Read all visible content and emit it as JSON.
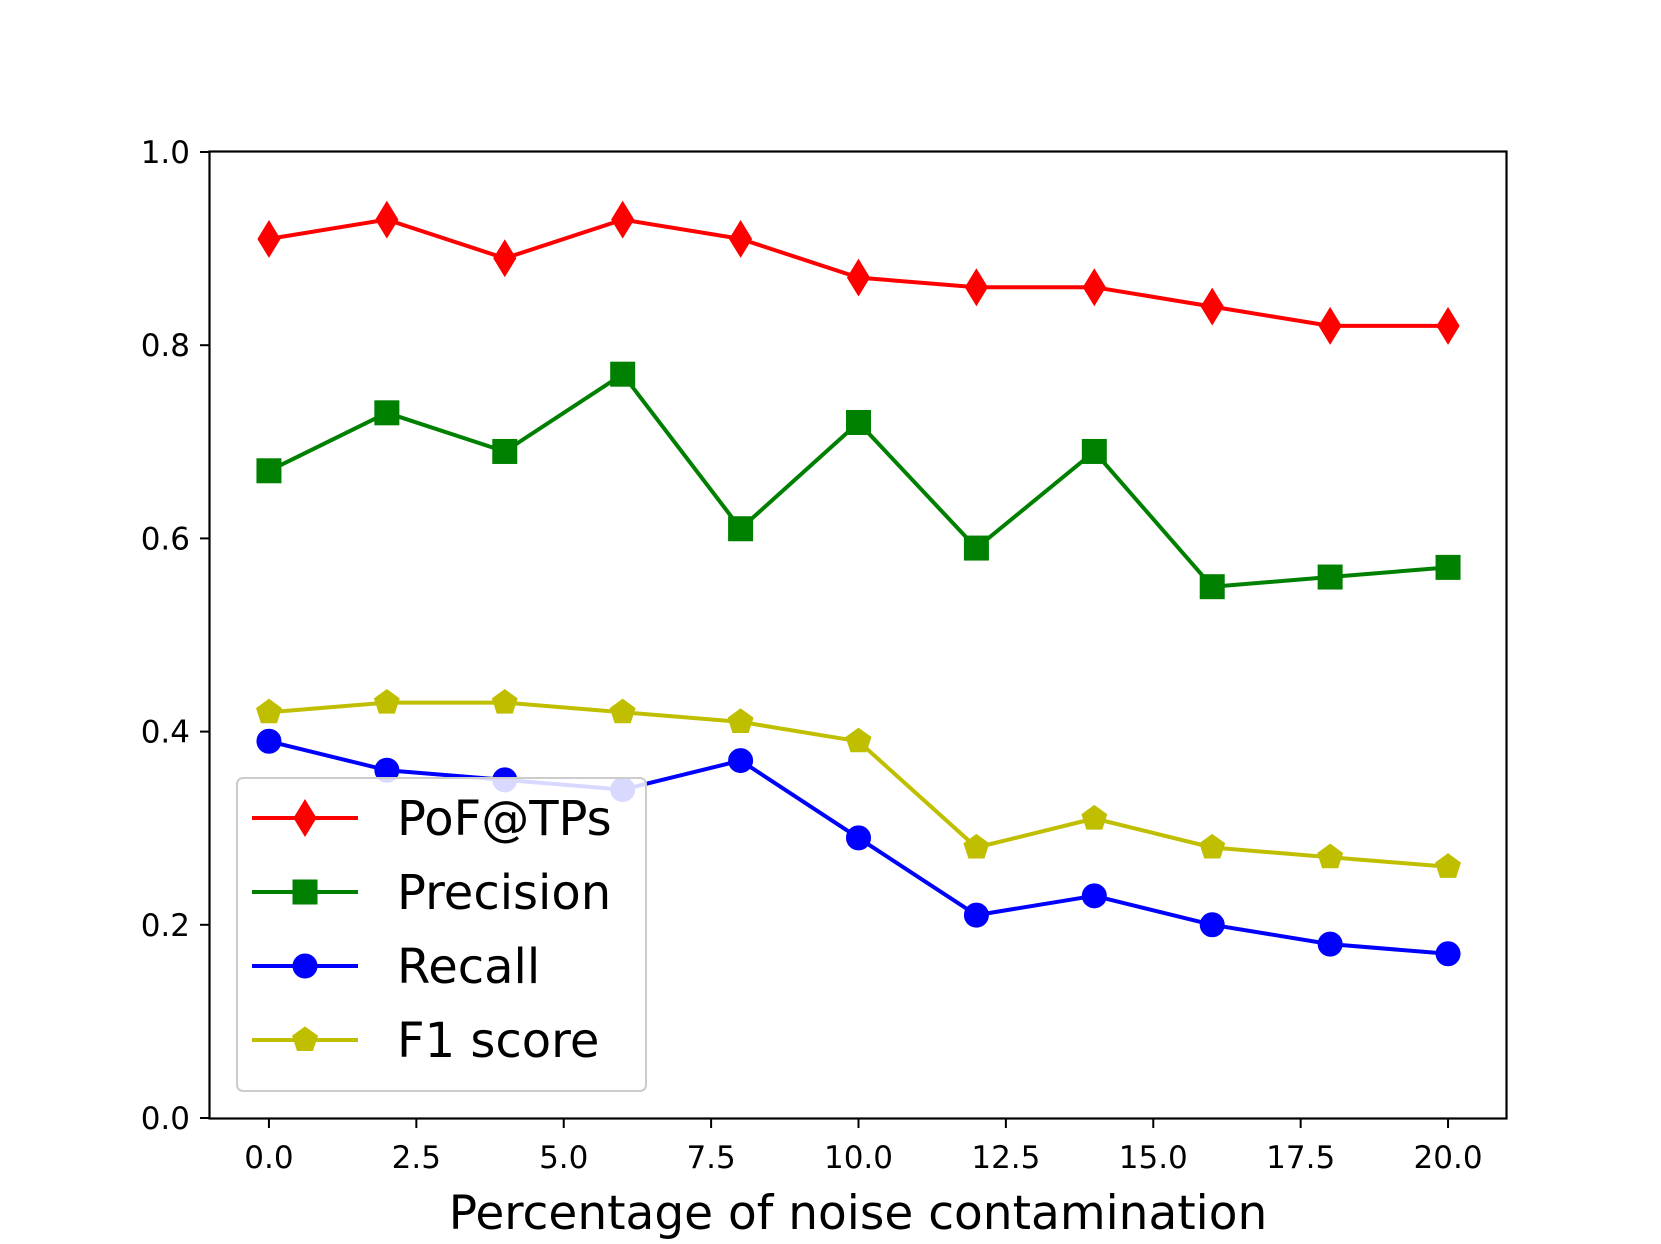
{
  "chart_data": {
    "type": "line",
    "title": "",
    "xlabel": "Percentage of noise contamination",
    "ylabel": "",
    "xlim": [
      -1,
      21
    ],
    "ylim": [
      0.0,
      1.0
    ],
    "x": [
      0,
      2,
      4,
      6,
      8,
      10,
      12,
      14,
      16,
      18,
      20
    ],
    "xticks": [
      0.0,
      2.5,
      5.0,
      7.5,
      10.0,
      12.5,
      15.0,
      17.5,
      20.0
    ],
    "xtick_labels": [
      "0.0",
      "2.5",
      "5.0",
      "7.5",
      "10.0",
      "12.5",
      "15.0",
      "17.5",
      "20.0"
    ],
    "yticks": [
      0.0,
      0.2,
      0.4,
      0.6,
      0.8,
      1.0
    ],
    "ytick_labels": [
      "0.0",
      "0.2",
      "0.4",
      "0.6",
      "0.8",
      "1.0"
    ],
    "grid": false,
    "legend_position": "lower-left",
    "series": [
      {
        "name": "PoF@TPs",
        "color": "#ff0000",
        "marker": "thin-diamond",
        "values": [
          0.91,
          0.93,
          0.89,
          0.93,
          0.91,
          0.87,
          0.86,
          0.86,
          0.84,
          0.82,
          0.82
        ]
      },
      {
        "name": "Precision",
        "color": "#008000",
        "marker": "square",
        "values": [
          0.67,
          0.73,
          0.69,
          0.77,
          0.61,
          0.72,
          0.59,
          0.69,
          0.55,
          0.56,
          0.57
        ]
      },
      {
        "name": "Recall",
        "color": "#0000ff",
        "marker": "circle",
        "values": [
          0.39,
          0.36,
          0.35,
          0.34,
          0.37,
          0.29,
          0.21,
          0.23,
          0.2,
          0.18,
          0.17
        ]
      },
      {
        "name": "F1 score",
        "color": "#bfbf00",
        "marker": "pentagon",
        "values": [
          0.42,
          0.43,
          0.43,
          0.42,
          0.41,
          0.39,
          0.28,
          0.31,
          0.28,
          0.27,
          0.26
        ]
      }
    ]
  }
}
